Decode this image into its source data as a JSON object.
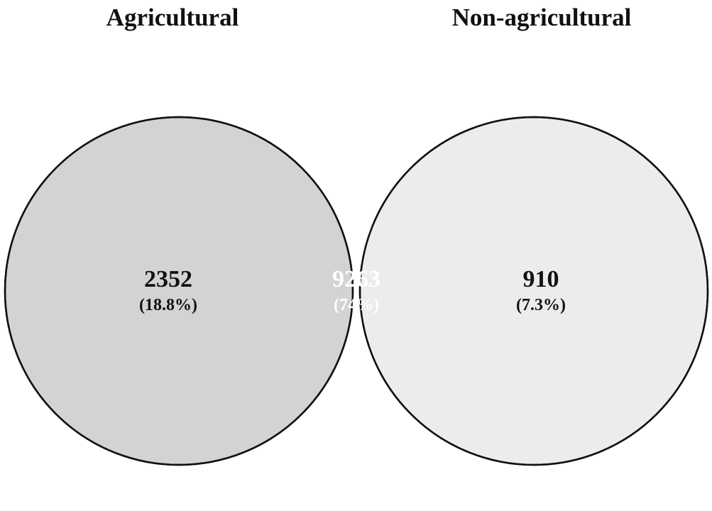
{
  "figure": {
    "sets": [
      {
        "name": "Agricultural",
        "fill": "#d3d3d3"
      },
      {
        "name": "Non-agricultural",
        "fill": "#ececec"
      }
    ],
    "regions": {
      "agricultural_only": {
        "count": "2352",
        "percent": "(18.8%)"
      },
      "intersection": {
        "count": "9263",
        "percent": "(74%)",
        "fill": "#404040",
        "text_color": "#ffffff"
      },
      "non_agricultural_only": {
        "count": "910",
        "percent": "(7.3%)"
      }
    },
    "outline_color": "#111111",
    "text_color": "#111111"
  }
}
